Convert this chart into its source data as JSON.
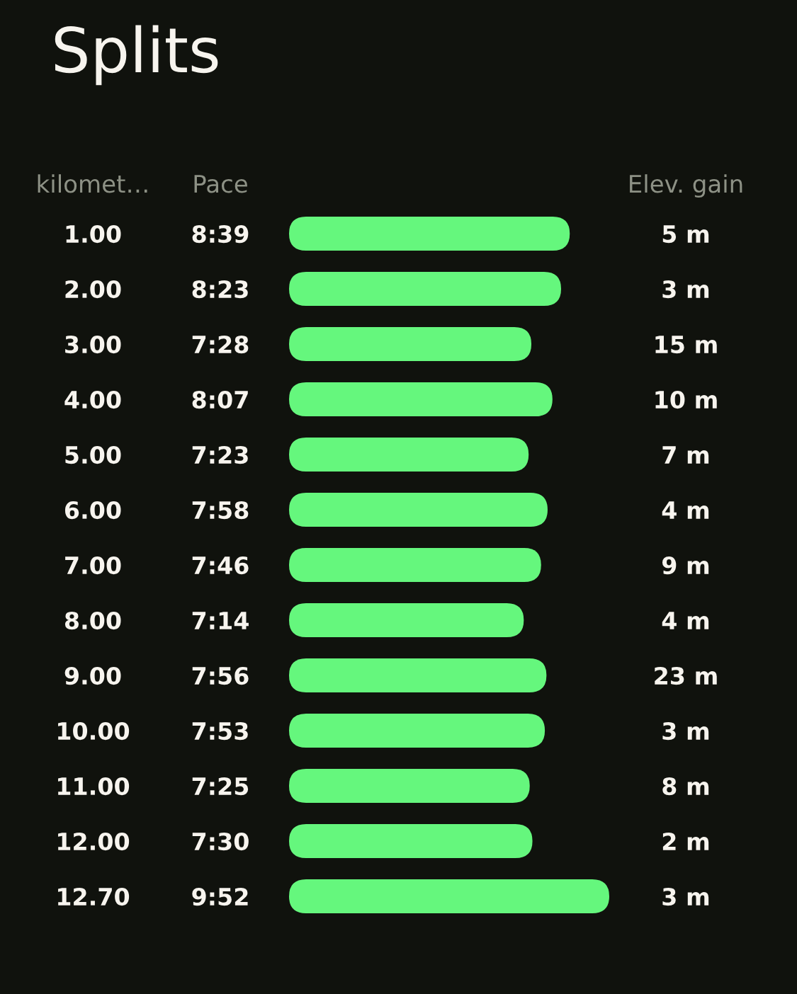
{
  "chart_data": {
    "type": "bar",
    "orientation": "horizontal",
    "title": "Splits",
    "ylabel": "kilomet…",
    "y2label": "Elev. gain",
    "categories": [
      "1.00",
      "2.00",
      "3.00",
      "4.00",
      "5.00",
      "6.00",
      "7.00",
      "8.00",
      "9.00",
      "10.00",
      "11.00",
      "12.00",
      "12.70"
    ],
    "y2_categories": [
      "5 m",
      "3 m",
      "15 m",
      "10 m",
      "7 m",
      "4 m",
      "9 m",
      "4 m",
      "23 m",
      "3 m",
      "8 m",
      "2 m",
      "3 m"
    ],
    "series": [
      {
        "name": "Pace",
        "color": "#65f77d",
        "values": [
          8.65,
          8.383,
          7.467,
          8.117,
          7.383,
          7.967,
          7.767,
          7.233,
          7.933,
          7.883,
          7.417,
          7.5,
          9.867
        ],
        "value_labels": [
          "8:39",
          "8:23",
          "7:28",
          "8:07",
          "7:23",
          "7:58",
          "7:46",
          "7:14",
          "7:56",
          "7:53",
          "7:25",
          "7:30",
          "9:52"
        ]
      }
    ]
  }
}
